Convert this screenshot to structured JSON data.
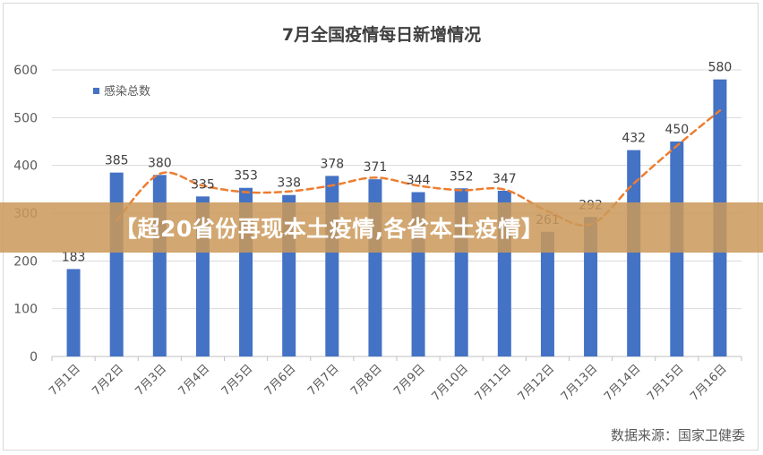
{
  "chart_data": {
    "type": "bar",
    "title": "7月全国疫情每日新增情况",
    "categories": [
      "7月1日",
      "7月2日",
      "7月3日",
      "7月4日",
      "7月5日",
      "7月6日",
      "7月7日",
      "7月8日",
      "7月9日",
      "7月10日",
      "7月11日",
      "7月12日",
      "7月13日",
      "7月14日",
      "7月15日",
      "7月16日"
    ],
    "series": [
      {
        "name": "感染总数",
        "values": [
          183,
          385,
          380,
          335,
          353,
          338,
          378,
          371,
          344,
          352,
          347,
          261,
          292,
          432,
          450,
          580
        ],
        "color": "#4472c4"
      }
    ],
    "trendline": {
      "type": "moving-average",
      "color": "#ed7d31",
      "style": "dashed"
    },
    "ylim": [
      0,
      600
    ],
    "yticks": [
      0,
      100,
      200,
      300,
      400,
      500,
      600
    ],
    "xlabel": "",
    "ylabel": "",
    "grid": true,
    "legend_position": "top-left",
    "data_labels": true
  },
  "banner": {
    "text": "【超20省份再现本土疫情,各省本土疫情】"
  },
  "source": {
    "text": "数据来源：国家卫健委"
  }
}
